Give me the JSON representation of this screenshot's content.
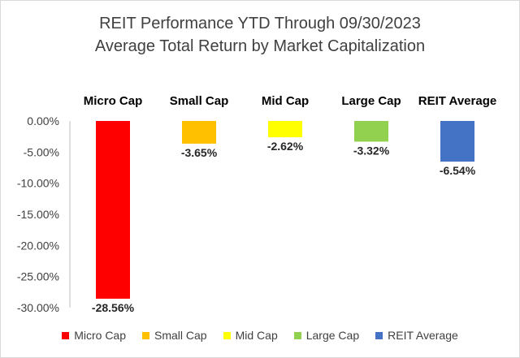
{
  "chart_data": {
    "type": "bar",
    "title": [
      "REIT Performance YTD Through 09/30/2023",
      "Average Total Return by Market Capitalization"
    ],
    "categories": [
      "Micro Cap",
      "Small Cap",
      "Mid Cap",
      "Large Cap",
      "REIT Average"
    ],
    "values": [
      -28.56,
      -3.65,
      -2.62,
      -3.32,
      -6.54
    ],
    "data_labels": [
      "-28.56%",
      "-3.65%",
      "-2.62%",
      "-3.32%",
      "-6.54%"
    ],
    "colors": [
      "#ff0000",
      "#ffc000",
      "#ffff00",
      "#92d050",
      "#4472c4"
    ],
    "ylim": [
      -30,
      0
    ],
    "yticks": [
      0,
      -5,
      -10,
      -15,
      -20,
      -25,
      -30
    ],
    "ytick_labels": [
      "0.00%",
      "-5.00%",
      "-10.00%",
      "-15.00%",
      "-20.00%",
      "-25.00%",
      "-30.00%"
    ],
    "xlabel": "",
    "ylabel": "",
    "grid": false,
    "legend": "bottom"
  }
}
